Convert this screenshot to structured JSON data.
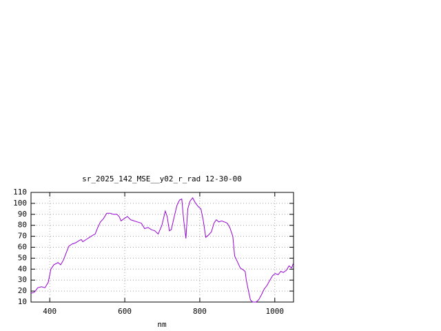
{
  "chart_data": {
    "type": "line",
    "title": "sr_2025_142_MSE__y02_r_rad 12-30-00",
    "x_label": "nm",
    "xlim": [
      350,
      1050
    ],
    "xticks": [
      400,
      600,
      800,
      1000
    ],
    "ylim": [
      10,
      110
    ],
    "yticks": [
      10,
      20,
      30,
      40,
      50,
      60,
      70,
      80,
      90,
      100,
      110
    ],
    "grid": true,
    "x": [
      350,
      359,
      368,
      378,
      387,
      396,
      403,
      411,
      422,
      429,
      436,
      444,
      451,
      460,
      469,
      478,
      484,
      488,
      497,
      506,
      515,
      521,
      528,
      535,
      543,
      552,
      561,
      570,
      579,
      585,
      590,
      598,
      607,
      616,
      625,
      634,
      644,
      653,
      662,
      671,
      680,
      689,
      699,
      708,
      713,
      719,
      724,
      732,
      739,
      746,
      752,
      757,
      763,
      768,
      774,
      781,
      789,
      796,
      803,
      809,
      816,
      823,
      831,
      838,
      844,
      851,
      858,
      866,
      873,
      880,
      888,
      893,
      900,
      908,
      913,
      921,
      924,
      930,
      935,
      941,
      950,
      957,
      965,
      972,
      979,
      987,
      994,
      1001,
      1009,
      1016,
      1023,
      1031,
      1038,
      1045,
      1049
    ],
    "series": [
      {
        "color": "#9400d3",
        "values": [
          18,
          19,
          23,
          24,
          23,
          28,
          40,
          44,
          46,
          44,
          48,
          55,
          61,
          63,
          64,
          66,
          67,
          65,
          67,
          69,
          71,
          72,
          78,
          83,
          86,
          91,
          91,
          90,
          90,
          88,
          84,
          86,
          88,
          85,
          84,
          83,
          82,
          77,
          78,
          76,
          75,
          72,
          80,
          93,
          88,
          75,
          76,
          88,
          98,
          103,
          104,
          85,
          68,
          95,
          102,
          105,
          100,
          97,
          95,
          85,
          69,
          71,
          74,
          82,
          85,
          83,
          84,
          83,
          82,
          78,
          70,
          52,
          47,
          41,
          40,
          38,
          30,
          20,
          12,
          10,
          10,
          12,
          17,
          22,
          25,
          30,
          34,
          36,
          35,
          38,
          37,
          39,
          43,
          41,
          45
        ]
      }
    ]
  }
}
